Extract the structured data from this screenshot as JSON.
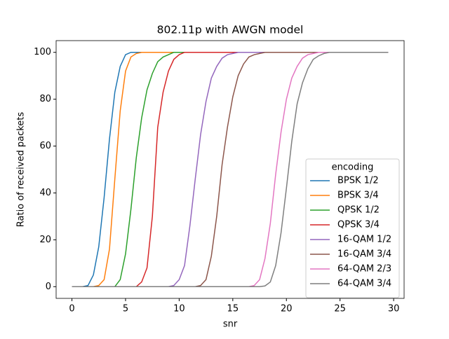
{
  "chart_data": {
    "type": "line",
    "title": "802.11p with AWGN model",
    "xlabel": "snr",
    "ylabel": "Ratio of received packets",
    "x": [
      0,
      0.5,
      1,
      1.5,
      2,
      2.5,
      3,
      3.5,
      4,
      4.5,
      5,
      5.5,
      6,
      6.5,
      7,
      7.5,
      8,
      8.5,
      9,
      9.5,
      10,
      10.5,
      11,
      11.5,
      12,
      12.5,
      13,
      13.5,
      14,
      14.5,
      15,
      15.5,
      16,
      16.5,
      17,
      17.5,
      18,
      18.5,
      19,
      19.5,
      20,
      20.5,
      21,
      21.5,
      22,
      22.5,
      23,
      23.5,
      24,
      24.5,
      25,
      25.5,
      26,
      26.5,
      27,
      27.5,
      28,
      28.5,
      29,
      29.5
    ],
    "series": [
      {
        "name": "BPSK 1/2",
        "color": "#1f77b4",
        "values": [
          0,
          0,
          0,
          0.5,
          5,
          17,
          38,
          63,
          83,
          94,
          99,
          100,
          100,
          100,
          100,
          100,
          100,
          100,
          100,
          100,
          100,
          100,
          100,
          100,
          100,
          100,
          100,
          100,
          100,
          100,
          100,
          100,
          100,
          100,
          100,
          100,
          100,
          100,
          100,
          100,
          100,
          100,
          100,
          100,
          100,
          100,
          100,
          100,
          100,
          100,
          100,
          100,
          100,
          100,
          100,
          100,
          100,
          100,
          100,
          100
        ]
      },
      {
        "name": "BPSK 3/4",
        "color": "#ff7f0e",
        "values": [
          0,
          0,
          0,
          0,
          0,
          0.5,
          3,
          16,
          46,
          75,
          92,
          98,
          99.5,
          100,
          100,
          100,
          100,
          100,
          100,
          100,
          100,
          100,
          100,
          100,
          100,
          100,
          100,
          100,
          100,
          100,
          100,
          100,
          100,
          100,
          100,
          100,
          100,
          100,
          100,
          100,
          100,
          100,
          100,
          100,
          100,
          100,
          100,
          100,
          100,
          100,
          100,
          100,
          100,
          100,
          100,
          100,
          100,
          100,
          100,
          100
        ]
      },
      {
        "name": "QPSK 1/2",
        "color": "#2ca02c",
        "values": [
          0,
          0,
          0,
          0,
          0,
          0,
          0,
          0,
          0,
          3,
          14,
          33,
          55,
          72,
          84,
          91,
          96,
          98,
          99,
          100,
          100,
          100,
          100,
          100,
          100,
          100,
          100,
          100,
          100,
          100,
          100,
          100,
          100,
          100,
          100,
          100,
          100,
          100,
          100,
          100,
          100,
          100,
          100,
          100,
          100,
          100,
          100,
          100,
          100,
          100,
          100,
          100,
          100,
          100,
          100,
          100,
          100,
          100,
          100,
          100
        ]
      },
      {
        "name": "QPSK 3/4",
        "color": "#d62728",
        "values": [
          0,
          0,
          0,
          0,
          0,
          0,
          0,
          0,
          0,
          0,
          0,
          0,
          0,
          2,
          8,
          30,
          68,
          83,
          92,
          97,
          99,
          100,
          100,
          100,
          100,
          100,
          100,
          100,
          100,
          100,
          100,
          100,
          100,
          100,
          100,
          100,
          100,
          100,
          100,
          100,
          100,
          100,
          100,
          100,
          100,
          100,
          100,
          100,
          100,
          100,
          100,
          100,
          100,
          100,
          100,
          100,
          100,
          100,
          100,
          100
        ]
      },
      {
        "name": "16-QAM 1/2",
        "color": "#9467bd",
        "values": [
          0,
          0,
          0,
          0,
          0,
          0,
          0,
          0,
          0,
          0,
          0,
          0,
          0,
          0,
          0,
          0,
          0,
          0,
          0,
          0.5,
          3,
          9,
          26,
          46,
          65,
          79,
          89,
          94,
          97.5,
          99,
          99.5,
          100,
          100,
          100,
          100,
          100,
          100,
          100,
          100,
          100,
          100,
          100,
          100,
          100,
          100,
          100,
          100,
          100,
          100,
          100,
          100,
          100,
          100,
          100,
          100,
          100,
          100,
          100,
          100,
          100
        ]
      },
      {
        "name": "16-QAM 3/4",
        "color": "#8c564b",
        "values": [
          0,
          0,
          0,
          0,
          0,
          0,
          0,
          0,
          0,
          0,
          0,
          0,
          0,
          0,
          0,
          0,
          0,
          0,
          0,
          0,
          0,
          0,
          0,
          0,
          0.5,
          3,
          13,
          30,
          52,
          68,
          81,
          90,
          95,
          98,
          99,
          99.5,
          100,
          100,
          100,
          100,
          100,
          100,
          100,
          100,
          100,
          100,
          100,
          100,
          100,
          100,
          100,
          100,
          100,
          100,
          100,
          100,
          100,
          100,
          100,
          100
        ]
      },
      {
        "name": "64-QAM 2/3",
        "color": "#e377c2",
        "values": [
          0,
          0,
          0,
          0,
          0,
          0,
          0,
          0,
          0,
          0,
          0,
          0,
          0,
          0,
          0,
          0,
          0,
          0,
          0,
          0,
          0,
          0,
          0,
          0,
          0,
          0,
          0,
          0,
          0,
          0,
          0,
          0,
          0,
          0,
          0.5,
          3,
          12,
          27,
          48,
          66,
          80,
          89,
          94,
          97.5,
          99,
          99.5,
          100,
          100,
          100,
          100,
          100,
          100,
          100,
          100,
          100,
          100,
          100,
          100,
          100,
          100
        ]
      },
      {
        "name": "64-QAM 3/4",
        "color": "#7f7f7f",
        "values": [
          0,
          0,
          0,
          0,
          0,
          0,
          0,
          0,
          0,
          0,
          0,
          0,
          0,
          0,
          0,
          0,
          0,
          0,
          0,
          0,
          0,
          0,
          0,
          0,
          0,
          0,
          0,
          0,
          0,
          0,
          0,
          0,
          0,
          0,
          0,
          0,
          0.3,
          2,
          9,
          23,
          42,
          62,
          78,
          87,
          93,
          97,
          98.5,
          99.5,
          100,
          100,
          100,
          100,
          100,
          100,
          100,
          100,
          100,
          100,
          100,
          100
        ]
      }
    ],
    "xlim": [
      -1.475,
      30.975
    ],
    "ylim": [
      -5,
      105
    ],
    "xticks": [
      0,
      5,
      10,
      15,
      20,
      25,
      30
    ],
    "yticks": [
      0,
      20,
      40,
      60,
      80,
      100
    ],
    "legend_title": "encoding",
    "legend": "lower right",
    "grid": false
  }
}
